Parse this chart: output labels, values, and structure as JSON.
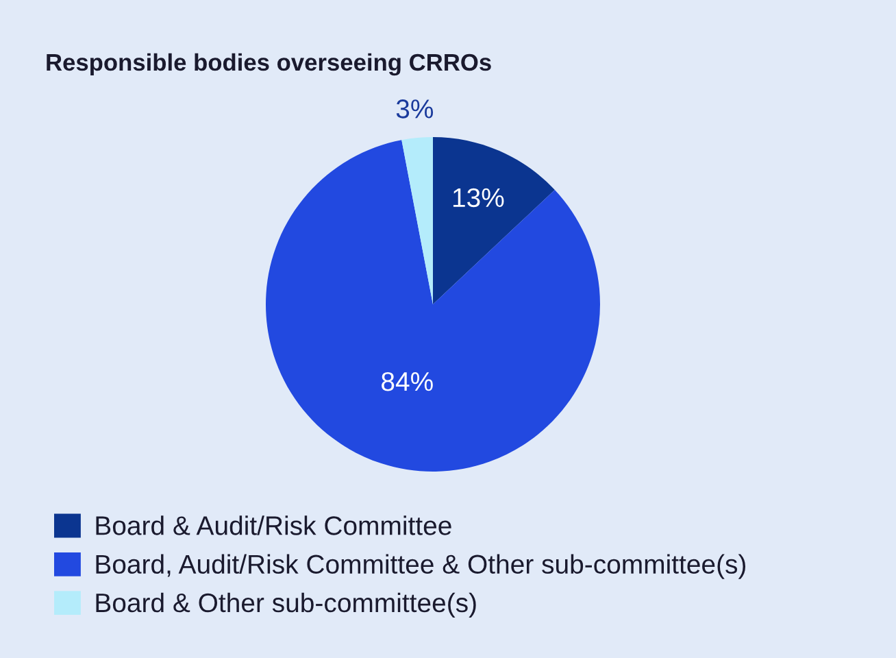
{
  "chart_data": {
    "type": "pie",
    "title": "Responsible bodies overseeing CRROs",
    "categories": [
      "Board & Audit/Risk Committee",
      "Board, Audit/Risk Committee & Other sub-committee(s)",
      "Board & Other sub-committee(s)"
    ],
    "values": [
      13,
      84,
      3
    ],
    "colors": [
      "#0b3590",
      "#2249e0",
      "#b4ecfb"
    ],
    "value_labels": [
      "13%",
      "84%",
      "3%"
    ],
    "legend": "bottom"
  }
}
